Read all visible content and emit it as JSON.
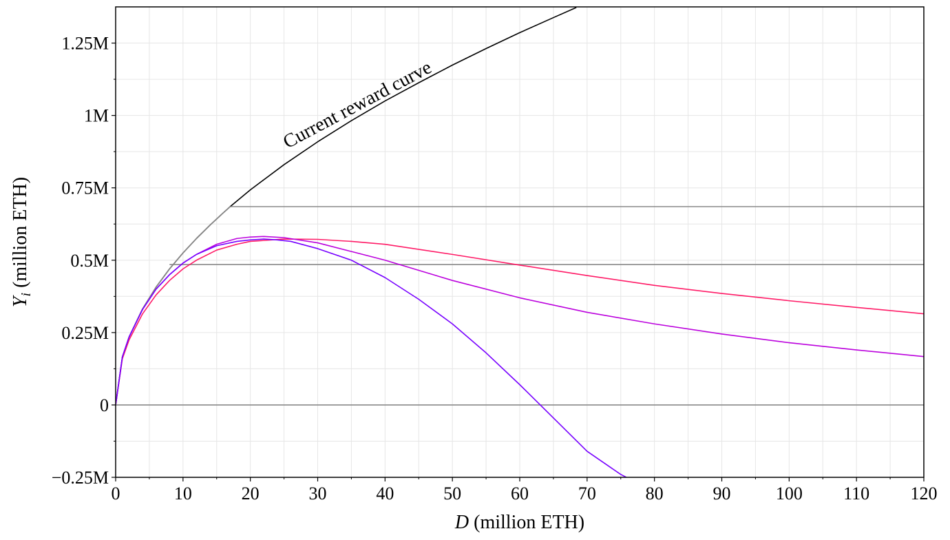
{
  "chart_data": {
    "type": "line",
    "xlabel_var": "D",
    "xlabel_rest": " (million ETH)",
    "ylabel_var": "Y",
    "ylabel_sub": "i",
    "ylabel_rest": " (million ETH)",
    "xlim": [
      0,
      120
    ],
    "ylim": [
      -0.25,
      1.375
    ],
    "grid": true,
    "x_ticks": [
      0,
      10,
      20,
      30,
      40,
      50,
      60,
      70,
      80,
      90,
      100,
      110,
      120
    ],
    "x_tick_labels": [
      "0",
      "10",
      "20",
      "30",
      "40",
      "50",
      "60",
      "70",
      "80",
      "90",
      "100",
      "110",
      "120"
    ],
    "y_ticks": [
      -0.25,
      0,
      0.25,
      0.5,
      0.75,
      1,
      1.25
    ],
    "y_tick_labels": [
      "−0.25M",
      "0",
      "0.25M",
      "0.5M",
      "0.75M",
      "1M",
      "1.25M"
    ],
    "annotation": {
      "text": "Current reward curve",
      "x": 25.5,
      "y": 0.885
    },
    "colors": {
      "black": "#000000",
      "gray": "#888888",
      "pink": "#ff1a66",
      "magenta": "#bb00dd",
      "violet": "#7700ff",
      "grid": "#e6e6e6"
    },
    "series": [
      {
        "color": "black",
        "x": [
          0,
          1,
          2,
          4,
          6,
          8,
          10,
          12,
          14,
          16,
          17,
          20,
          25,
          30,
          35,
          40,
          45,
          50,
          55,
          60,
          65,
          68.4
        ],
        "y": [
          0,
          0.166,
          0.235,
          0.332,
          0.407,
          0.47,
          0.525,
          0.575,
          0.621,
          0.664,
          0.685,
          0.743,
          0.83,
          0.909,
          0.982,
          1.05,
          1.113,
          1.174,
          1.231,
          1.286,
          1.338,
          1.373
        ]
      },
      {
        "color": "gray",
        "x": [
          0,
          1,
          2,
          4,
          6,
          8,
          10,
          12,
          14,
          16,
          17
        ],
        "y": [
          0,
          0.166,
          0.235,
          0.332,
          0.407,
          0.47,
          0.525,
          0.575,
          0.621,
          0.664,
          0.685
        ]
      },
      {
        "color": "gray",
        "x": [
          17,
          120
        ],
        "y": [
          0.685,
          0.685
        ]
      },
      {
        "color": "gray",
        "x": [
          8,
          120
        ],
        "y": [
          0.485,
          0.485
        ]
      },
      {
        "color": "gray",
        "x": [
          0,
          120
        ],
        "y": [
          0,
          0
        ]
      },
      {
        "color": "pink",
        "x": [
          0,
          1,
          2,
          4,
          6,
          8,
          10,
          12,
          15,
          18,
          20,
          25,
          30,
          35,
          40,
          50,
          60,
          70,
          80,
          90,
          100,
          110,
          120
        ],
        "y": [
          0,
          0.16,
          0.225,
          0.315,
          0.38,
          0.43,
          0.47,
          0.5,
          0.535,
          0.555,
          0.565,
          0.573,
          0.572,
          0.565,
          0.555,
          0.52,
          0.483,
          0.447,
          0.413,
          0.385,
          0.36,
          0.337,
          0.315
        ]
      },
      {
        "color": "magenta",
        "x": [
          0,
          1,
          2,
          4,
          6,
          8,
          10,
          12,
          15,
          18,
          20,
          22,
          25,
          30,
          35,
          40,
          50,
          60,
          70,
          80,
          90,
          100,
          110,
          120
        ],
        "y": [
          0,
          0.166,
          0.235,
          0.33,
          0.4,
          0.45,
          0.49,
          0.52,
          0.555,
          0.575,
          0.58,
          0.582,
          0.578,
          0.56,
          0.53,
          0.5,
          0.43,
          0.37,
          0.32,
          0.28,
          0.245,
          0.215,
          0.19,
          0.167
        ]
      },
      {
        "color": "violet",
        "x": [
          0,
          1,
          2,
          4,
          6,
          8,
          10,
          12,
          15,
          18,
          20,
          22,
          24,
          26,
          30,
          35,
          40,
          45,
          50,
          55,
          60,
          65,
          70,
          75,
          76
        ],
        "y": [
          0,
          0.166,
          0.235,
          0.33,
          0.4,
          0.45,
          0.49,
          0.52,
          0.55,
          0.565,
          0.57,
          0.573,
          0.57,
          0.565,
          0.54,
          0.5,
          0.44,
          0.365,
          0.28,
          0.18,
          0.07,
          -0.045,
          -0.16,
          -0.24,
          -0.252
        ]
      }
    ]
  }
}
